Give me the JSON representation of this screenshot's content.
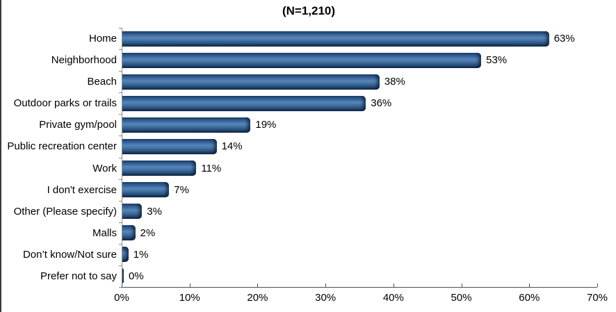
{
  "title": "(N=1,210)",
  "chart_data": {
    "type": "bar",
    "orientation": "horizontal",
    "title": "(N=1,210)",
    "categories": [
      "Home",
      "Neighborhood",
      "Beach",
      "Outdoor parks or trails",
      "Private gym/pool",
      "Public recreation center",
      "Work",
      "I don't exercise",
      "Other (Please specify)",
      "Malls",
      "Don’t know/Not sure",
      "Prefer not to say"
    ],
    "values": [
      63,
      53,
      38,
      36,
      19,
      14,
      11,
      7,
      3,
      2,
      1,
      0
    ],
    "value_labels": [
      "63%",
      "53%",
      "38%",
      "36%",
      "19%",
      "14%",
      "11%",
      "7%",
      "3%",
      "2%",
      "1%",
      "0%"
    ],
    "xlabel": "",
    "ylabel": "",
    "xlim": [
      0,
      70
    ],
    "x_tick_labels": [
      "0%",
      "10%",
      "20%",
      "30%",
      "40%",
      "50%",
      "60%",
      "70%"
    ],
    "grid": false,
    "legend": false,
    "bar_color_mid": "#4F81BD",
    "bar_color_dark": "#17375E",
    "axis_color": "#4d4d4d",
    "y_axis_color": "#8c8c8c",
    "text_color": "#000000",
    "background_color": "#ffffff"
  }
}
